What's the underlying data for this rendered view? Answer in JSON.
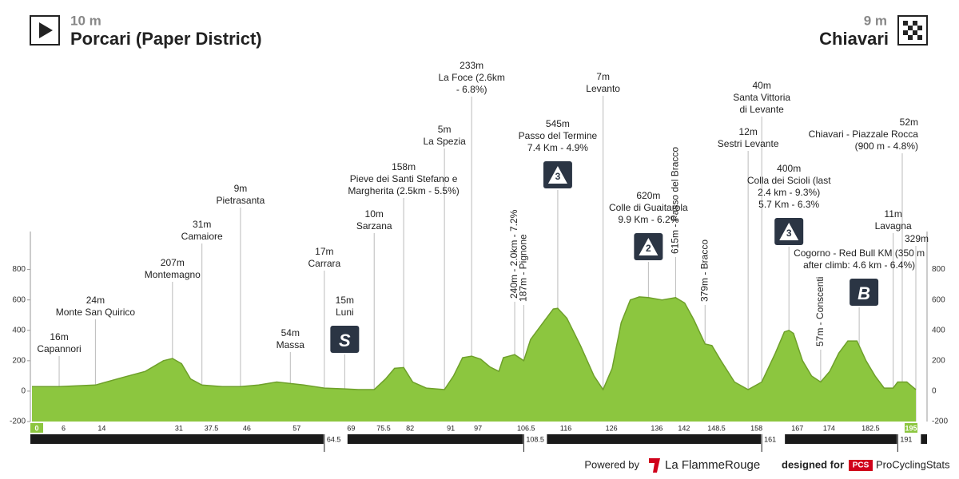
{
  "header": {
    "start_elevation": "10 m",
    "start_name": "Porcari (Paper District)",
    "finish_elevation": "9 m",
    "finish_name": "Chiavari"
  },
  "footer": {
    "powered_by": "Powered by",
    "brand": "La FlammeRouge",
    "designed_for": "designed for",
    "pcs": "PCS",
    "site": "ProCyclingStats"
  },
  "chart_data": {
    "type": "area",
    "color": "#8cc63f",
    "x": [
      0,
      6,
      14,
      20,
      25,
      29,
      31,
      33,
      35,
      37.5,
      42,
      46,
      50,
      54,
      57,
      60,
      64.5,
      69,
      72,
      75.5,
      78,
      80,
      82,
      84,
      87,
      91,
      93,
      95,
      97,
      99,
      101,
      103,
      104,
      106.5,
      108.5,
      110,
      113,
      115,
      116,
      118,
      121,
      124,
      126,
      128,
      130,
      132,
      134,
      136,
      139,
      142,
      144,
      146,
      148.5,
      150,
      152,
      155,
      158,
      161,
      164,
      166,
      167,
      168,
      170,
      172,
      174,
      176,
      178,
      180,
      182,
      184,
      186,
      188,
      190,
      191,
      193,
      195
    ],
    "values": [
      30,
      30,
      40,
      90,
      130,
      200,
      215,
      180,
      80,
      40,
      30,
      30,
      40,
      60,
      50,
      40,
      20,
      15,
      10,
      10,
      80,
      150,
      155,
      60,
      20,
      10,
      100,
      220,
      230,
      210,
      160,
      130,
      220,
      240,
      200,
      340,
      460,
      540,
      545,
      480,
      300,
      100,
      10,
      150,
      450,
      600,
      620,
      615,
      600,
      615,
      580,
      470,
      310,
      300,
      200,
      60,
      10,
      60,
      250,
      390,
      400,
      380,
      200,
      100,
      60,
      130,
      250,
      330,
      330,
      200,
      100,
      20,
      20,
      60,
      60,
      10
    ],
    "xlim": [
      0,
      195
    ],
    "ylim": [
      -200,
      1050
    ],
    "yticks": [
      -200,
      0,
      200,
      400,
      600,
      800
    ],
    "km_marks": [
      0,
      6,
      14,
      31,
      37.5,
      46,
      57,
      69,
      75.5,
      82,
      91,
      97,
      106.5,
      116,
      126,
      136,
      142,
      148.5,
      158,
      167,
      174,
      182.5,
      195
    ],
    "band_marks": [
      64.5,
      108.5,
      161,
      191
    ],
    "waypoints": [
      {
        "km": 6,
        "lines": [
          "16m",
          "Capannori"
        ]
      },
      {
        "km": 14,
        "lines": [
          "24m",
          "Monte San Quirico"
        ]
      },
      {
        "km": 31,
        "lines": [
          "207m",
          "Montemagno"
        ]
      },
      {
        "km": 37.5,
        "lines": [
          "31m",
          "Camaiore"
        ]
      },
      {
        "km": 46,
        "lines": [
          "9m",
          "Pietrasanta"
        ]
      },
      {
        "km": 57,
        "lines": [
          "54m",
          "Massa"
        ]
      },
      {
        "km": 64.5,
        "lines": [
          "17m",
          "Carrara"
        ]
      },
      {
        "km": 69,
        "lines": [
          "15m",
          "Luni"
        ],
        "icon": "S"
      },
      {
        "km": 75.5,
        "lines": [
          "10m",
          "Sarzana"
        ]
      },
      {
        "km": 82,
        "lines": [
          "158m",
          "Pieve dei Santi Stefano e",
          "Margherita (2.5km - 5.5%)"
        ]
      },
      {
        "km": 91,
        "lines": [
          "5m",
          "La Spezia"
        ]
      },
      {
        "km": 97,
        "lines": [
          "233m",
          "La Foce (2.6km",
          "- 6.8%)"
        ]
      },
      {
        "km": 106.5,
        "lines": [
          "240m - 2.0km - 7.2%"
        ],
        "vertical": true
      },
      {
        "km": 108.5,
        "lines": [
          "187m - Pignone"
        ],
        "vertical": true
      },
      {
        "km": 116,
        "lines": [
          "545m",
          "Passo del Termine",
          "7.4 Km - 4.9%"
        ],
        "icon": "3"
      },
      {
        "km": 126,
        "lines": [
          "7m",
          "Levanto"
        ]
      },
      {
        "km": 136,
        "lines": [
          "620m",
          "Colle di Guaitarola",
          "9.9 Km - 6.2%"
        ],
        "icon": "2"
      },
      {
        "km": 142,
        "lines": [
          "615m - Passo del Bracco"
        ],
        "vertical": true
      },
      {
        "km": 148.5,
        "lines": [
          "379m - Bracco"
        ],
        "vertical": true
      },
      {
        "km": 158,
        "lines": [
          "12m",
          "Sestri Levante"
        ]
      },
      {
        "km": 161,
        "lines": [
          "40m",
          "Santa Vittoria",
          "di Levante"
        ]
      },
      {
        "km": 167,
        "lines": [
          "400m",
          "Colla dei Scioli (last",
          "2.4 km - 9.3%)",
          "5.7 Km - 6.3%"
        ],
        "icon": "3"
      },
      {
        "km": 174,
        "lines": [
          "57m - Conscenti"
        ],
        "vertical": true
      },
      {
        "km": 182.5,
        "lines": [
          "Cogorno - Red Bull KM (350 m",
          "after climb: 4.6 km - 6.4%)"
        ],
        "icon": "B"
      },
      {
        "km": 190,
        "lines": [
          "11m",
          "Lavagna"
        ]
      },
      {
        "km": 192,
        "lines": [
          "52m",
          "Chiavari - Piazzale Rocca",
          "(900 m - 4.8%)"
        ]
      },
      {
        "km": 195,
        "lines": [
          "329m"
        ]
      }
    ]
  }
}
